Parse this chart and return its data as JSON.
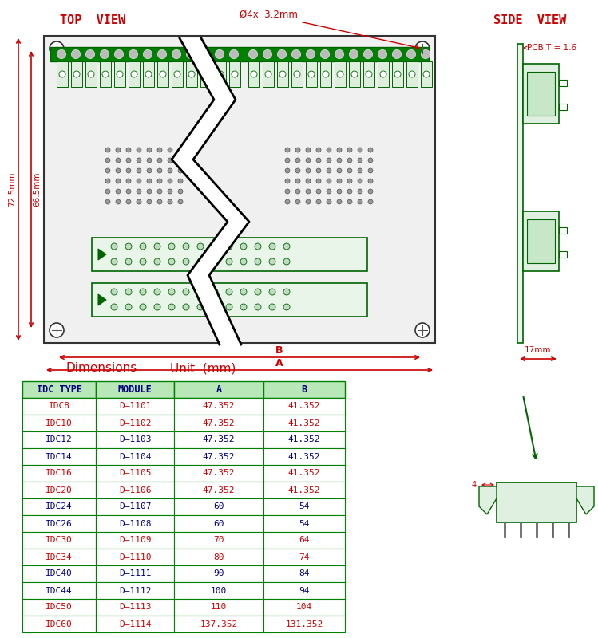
{
  "bg_color": "#ffffff",
  "green": "#008000",
  "dark_green": "#006400",
  "red": "#cc0000",
  "dark_blue": "#000080",
  "blue": "#0000cc",
  "table_border": "#008000",
  "title_top_view": "TOP  VIEW",
  "title_side_view": "SIDE  VIEW",
  "dim_label_1": "Dimensions",
  "dim_label_2": "Unit  (mm)",
  "hole_label": "Ø4x  3.2mm",
  "pcb_label": "PCB T = 1.6",
  "dim_72": "72.5mm",
  "dim_66": "66.5mm",
  "dim_17": "17mm",
  "table_headers": [
    "IDC TYPE",
    "MODULE",
    "A",
    "B"
  ],
  "table_rows": [
    [
      "IDC8",
      "D–1101",
      "47.352",
      "41.352",
      "red",
      "red"
    ],
    [
      "IDC10",
      "D–1102",
      "47.352",
      "41.352",
      "red",
      "red"
    ],
    [
      "IDC12",
      "D–1103",
      "47.352",
      "41.352",
      "dark_blue",
      "dark_blue"
    ],
    [
      "IDC14",
      "D–1104",
      "47.352",
      "41.352",
      "dark_blue",
      "dark_blue"
    ],
    [
      "IDC16",
      "D–1105",
      "47.352",
      "41.352",
      "red",
      "red"
    ],
    [
      "IDC20",
      "D–1106",
      "47.352",
      "41.352",
      "red",
      "red"
    ],
    [
      "IDC24",
      "D–1107",
      "60",
      "54",
      "dark_blue",
      "dark_blue"
    ],
    [
      "IDC26",
      "D–1108",
      "60",
      "54",
      "dark_blue",
      "dark_blue"
    ],
    [
      "IDC30",
      "D–1109",
      "70",
      "64",
      "red",
      "red"
    ],
    [
      "IDC34",
      "D–1110",
      "80",
      "74",
      "red",
      "red"
    ],
    [
      "IDC40",
      "D–1111",
      "90",
      "84",
      "dark_blue",
      "dark_blue"
    ],
    [
      "IDC44",
      "D–1112",
      "100",
      "94",
      "dark_blue",
      "dark_blue"
    ],
    [
      "IDC50",
      "D–1113",
      "110",
      "104",
      "red",
      "red"
    ],
    [
      "IDC60",
      "D–1114",
      "137.352",
      "131.352",
      "red",
      "red"
    ]
  ]
}
